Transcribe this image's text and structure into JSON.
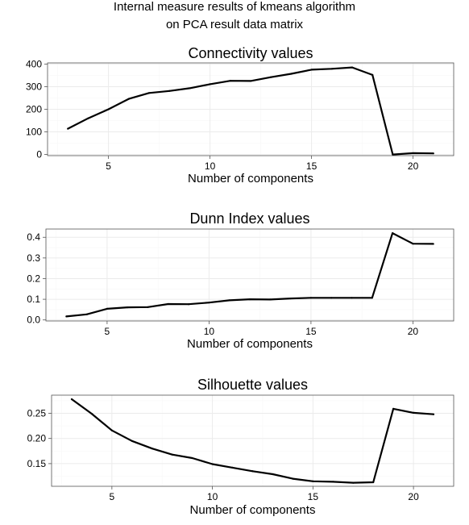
{
  "figure": {
    "title_line1": "Internal measure results of kmeans algorithm",
    "title_line2": "on PCA result data matrix"
  },
  "chart_data": [
    {
      "type": "line",
      "title": "Connectivity values",
      "xlabel": "Number of components",
      "ylabel": "",
      "x": [
        3,
        4,
        5,
        6,
        7,
        8,
        9,
        10,
        11,
        12,
        13,
        14,
        15,
        16,
        17,
        18,
        19,
        20,
        21
      ],
      "values": [
        114,
        160,
        200,
        246,
        272,
        281,
        293,
        311,
        326,
        325,
        342,
        357,
        375,
        379,
        385,
        352,
        0,
        6,
        5
      ],
      "xlim": [
        2,
        22
      ],
      "ylim": [
        -5,
        405
      ],
      "xticks": [
        5,
        10,
        15,
        20
      ],
      "yticks": [
        0,
        100,
        200,
        300,
        400
      ],
      "ytick_labels": [
        "0",
        "100",
        "200",
        "300",
        "400"
      ],
      "xtick_labels": [
        "5",
        "10",
        "15",
        "20"
      ],
      "grid": true
    },
    {
      "type": "line",
      "title": "Dunn Index values",
      "xlabel": "Number of components",
      "ylabel": "",
      "x": [
        3,
        4,
        5,
        6,
        7,
        8,
        9,
        10,
        11,
        12,
        13,
        14,
        15,
        16,
        17,
        18,
        19,
        20,
        21
      ],
      "values": [
        0.017,
        0.027,
        0.054,
        0.061,
        0.062,
        0.077,
        0.076,
        0.084,
        0.095,
        0.1,
        0.099,
        0.104,
        0.107,
        0.107,
        0.107,
        0.107,
        0.42,
        0.369,
        0.368
      ],
      "xlim": [
        2,
        22
      ],
      "ylim": [
        -0.005,
        0.44
      ],
      "xticks": [
        5,
        10,
        15,
        20
      ],
      "yticks": [
        0.0,
        0.1,
        0.2,
        0.3,
        0.4
      ],
      "ytick_labels": [
        "0.0",
        "0.1",
        "0.2",
        "0.3",
        "0.4"
      ],
      "xtick_labels": [
        "5",
        "10",
        "15",
        "20"
      ],
      "grid": true
    },
    {
      "type": "line",
      "title": "Silhouette values",
      "xlabel": "Number of components",
      "ylabel": "",
      "x": [
        3,
        4,
        5,
        6,
        7,
        8,
        9,
        10,
        11,
        12,
        13,
        14,
        15,
        16,
        17,
        18,
        19,
        20,
        21
      ],
      "values": [
        0.278,
        0.249,
        0.216,
        0.195,
        0.18,
        0.168,
        0.161,
        0.149,
        0.142,
        0.135,
        0.129,
        0.12,
        0.115,
        0.114,
        0.112,
        0.113,
        0.259,
        0.251,
        0.248
      ],
      "xlim": [
        2,
        22
      ],
      "ylim": [
        0.105,
        0.286
      ],
      "xticks": [
        5,
        10,
        15,
        20
      ],
      "yticks": [
        0.15,
        0.2,
        0.25
      ],
      "ytick_labels": [
        "0.15",
        "0.20",
        "0.25"
      ],
      "xtick_labels": [
        "5",
        "10",
        "15",
        "20"
      ],
      "grid": true
    }
  ]
}
